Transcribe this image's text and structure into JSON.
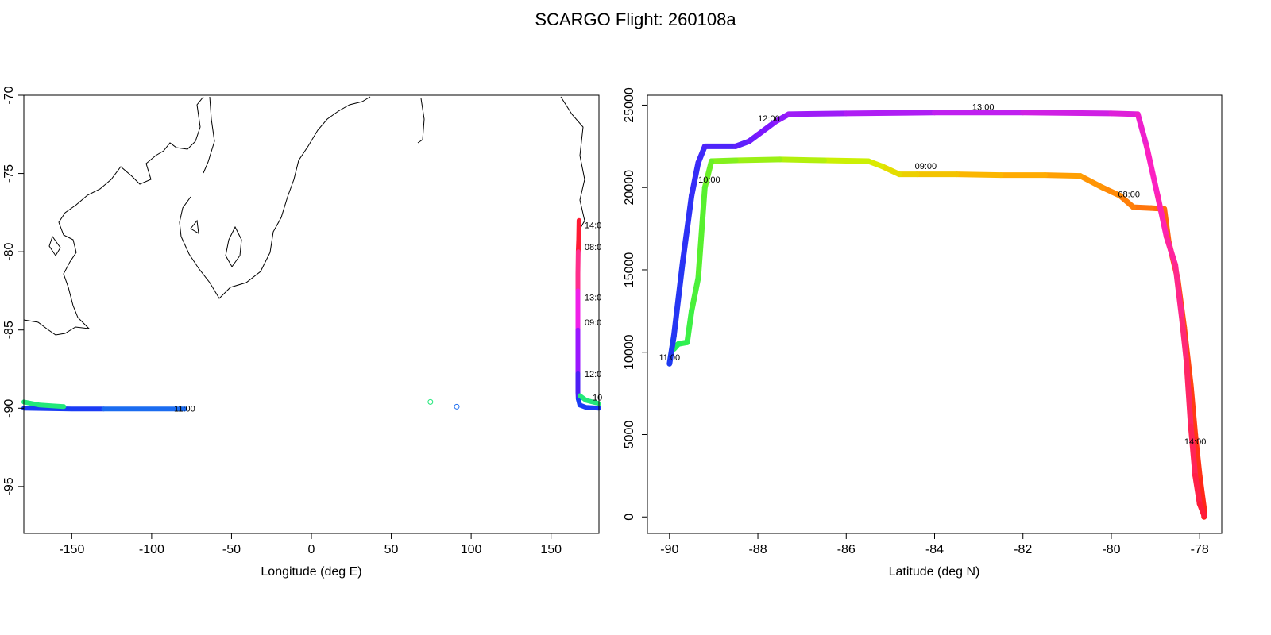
{
  "figure": {
    "title": "SCARGO Flight: 260108a"
  },
  "chart_data": [
    {
      "type": "line",
      "panel": "map",
      "xlabel": "Longitude (deg E)",
      "ylabel": "",
      "xlim": [
        -180,
        180
      ],
      "ylim": [
        -98,
        -70
      ],
      "x_ticks": [
        "-150",
        "-100",
        "-50",
        "0",
        "50",
        "100",
        "150"
      ],
      "x_tick_values": [
        -150,
        -100,
        -50,
        0,
        50,
        100,
        150
      ],
      "y_ticks": [
        "-70",
        "-75",
        "-80",
        "-85",
        "-90",
        "-95"
      ],
      "y_tick_values": [
        -70,
        -75,
        -80,
        -85,
        -90,
        -95
      ],
      "track_segments": [
        {
          "color": "#ff1a33",
          "points": [
            [
              167.5,
              -78.0
            ],
            [
              167.3,
              -79.2
            ],
            [
              167.0,
              -80.0
            ]
          ]
        },
        {
          "color": "#ff2f8c",
          "points": [
            [
              167.0,
              -80.0
            ],
            [
              166.8,
              -81.4
            ],
            [
              166.8,
              -82.5
            ]
          ]
        },
        {
          "color": "#f020e8",
          "points": [
            [
              166.8,
              -82.5
            ],
            [
              166.8,
              -83.8
            ],
            [
              166.8,
              -85.0
            ]
          ]
        },
        {
          "color": "#9a17ff",
          "points": [
            [
              166.8,
              -85.0
            ],
            [
              166.8,
              -86.5
            ],
            [
              166.8,
              -87.8
            ]
          ]
        },
        {
          "color": "#4d1ff5",
          "points": [
            [
              166.8,
              -87.8
            ],
            [
              166.8,
              -89.0
            ],
            [
              167.0,
              -89.4
            ]
          ]
        },
        {
          "color": "#1a3cf5",
          "points": [
            [
              167.0,
              -89.4
            ],
            [
              168.0,
              -89.8
            ],
            [
              172.0,
              -89.95
            ],
            [
              180.0,
              -90.0
            ]
          ]
        },
        {
          "color": "#1a3cf5",
          "points": [
            [
              -180.0,
              -90.0
            ],
            [
              -150.0,
              -90.05
            ],
            [
              -130.0,
              -90.05
            ]
          ]
        },
        {
          "color": "#1b6cf0",
          "points": [
            [
              -130.0,
              -90.05
            ],
            [
              -100.0,
              -90.05
            ],
            [
              -79.0,
              -90.05
            ]
          ]
        },
        {
          "color": "#22e87a",
          "points": [
            [
              -180.0,
              -89.6
            ],
            [
              -170.0,
              -89.8
            ],
            [
              -155.0,
              -89.9
            ]
          ]
        },
        {
          "color": "#22e87a",
          "points": [
            [
              168.0,
              -89.2
            ],
            [
              172.0,
              -89.5
            ],
            [
              180.0,
              -89.7
            ]
          ]
        }
      ],
      "markers": [
        {
          "lon": 74.5,
          "lat": -89.6,
          "color": "#22e87a"
        },
        {
          "lon": 91.0,
          "lat": -89.9,
          "color": "#1b6cf0"
        }
      ],
      "time_labels": [
        {
          "text": "14:0",
          "lon": 171.0,
          "lat": -78.3
        },
        {
          "text": "08:0",
          "lon": 171.0,
          "lat": -79.7
        },
        {
          "text": "13:0",
          "lon": 171.0,
          "lat": -82.9
        },
        {
          "text": "09:0",
          "lon": 171.0,
          "lat": -84.5
        },
        {
          "text": "12:0",
          "lon": 171.0,
          "lat": -87.8
        },
        {
          "text": "10",
          "lon": 176.0,
          "lat": -89.3
        },
        {
          "text": "11:00",
          "lon": -86.0,
          "lat": -90.0
        }
      ]
    },
    {
      "type": "line",
      "panel": "profile",
      "xlabel": "Latitude (deg N)",
      "ylabel": "",
      "xlim": [
        -90.5,
        -77.5
      ],
      "ylim": [
        -1000,
        25600
      ],
      "x_ticks": [
        "-90",
        "-88",
        "-86",
        "-84",
        "-82",
        "-80",
        "-78"
      ],
      "x_tick_values": [
        -90,
        -88,
        -86,
        -84,
        -82,
        -80,
        -78
      ],
      "y_ticks": [
        "0",
        "5000",
        "10000",
        "15000",
        "20000",
        "25000"
      ],
      "y_tick_values": [
        0,
        5000,
        10000,
        15000,
        20000,
        25000
      ],
      "outbound": {
        "colors": [
          "#ff1a1a",
          "#ff4a10",
          "#ff7a0a",
          "#ffb000",
          "#d8f000",
          "#5ef02a",
          "#1ef060"
        ],
        "points": [
          [
            -77.9,
            0
          ],
          [
            -77.9,
            500
          ],
          [
            -78.0,
            2500
          ],
          [
            -78.1,
            5000
          ],
          [
            -78.2,
            8000
          ],
          [
            -78.35,
            11500
          ],
          [
            -78.5,
            14500
          ],
          [
            -78.7,
            16700
          ],
          [
            -78.8,
            18700
          ],
          [
            -79.1,
            18750
          ],
          [
            -79.5,
            18800
          ],
          [
            -79.8,
            19500
          ],
          [
            -80.2,
            20000
          ],
          [
            -80.7,
            20700
          ],
          [
            -81.5,
            20750
          ],
          [
            -82.5,
            20750
          ],
          [
            -83.5,
            20800
          ],
          [
            -84.4,
            20800
          ],
          [
            -84.8,
            20800
          ],
          [
            -85.2,
            21300
          ],
          [
            -85.5,
            21600
          ],
          [
            -86.5,
            21650
          ],
          [
            -87.5,
            21700
          ],
          [
            -88.5,
            21650
          ],
          [
            -89.05,
            21600
          ],
          [
            -89.2,
            20000
          ],
          [
            -89.35,
            14500
          ],
          [
            -89.5,
            12500
          ],
          [
            -89.6,
            10600
          ],
          [
            -89.8,
            10500
          ],
          [
            -89.9,
            10200
          ]
        ]
      },
      "return": {
        "colors": [
          "#1a3cf0",
          "#3a2af8",
          "#7a18ff",
          "#c020f0",
          "#ff20c0",
          "#ff2a70",
          "#ff1a30"
        ],
        "points": [
          [
            -90.0,
            9300
          ],
          [
            -89.9,
            11000
          ],
          [
            -89.7,
            15500
          ],
          [
            -89.5,
            19500
          ],
          [
            -89.35,
            21500
          ],
          [
            -89.2,
            22500
          ],
          [
            -88.5,
            22500
          ],
          [
            -88.2,
            22800
          ],
          [
            -88.0,
            23200
          ],
          [
            -87.6,
            24000
          ],
          [
            -87.3,
            24450
          ],
          [
            -86.0,
            24500
          ],
          [
            -84.0,
            24550
          ],
          [
            -82.0,
            24550
          ],
          [
            -80.0,
            24500
          ],
          [
            -79.4,
            24450
          ],
          [
            -79.2,
            22500
          ],
          [
            -78.95,
            19500
          ],
          [
            -78.75,
            17000
          ],
          [
            -78.55,
            15300
          ],
          [
            -78.4,
            12000
          ],
          [
            -78.3,
            9500
          ],
          [
            -78.2,
            5500
          ],
          [
            -78.1,
            2500
          ],
          [
            -78.0,
            800
          ],
          [
            -77.9,
            100
          ]
        ]
      },
      "time_labels": [
        {
          "text": "12:00",
          "lat": -87.75,
          "alt": 24200
        },
        {
          "text": "13:00",
          "lat": -82.9,
          "alt": 24900
        },
        {
          "text": "10:00",
          "lat": -89.1,
          "alt": 20500
        },
        {
          "text": "09:00",
          "lat": -84.2,
          "alt": 21300
        },
        {
          "text": "08:00",
          "lat": -79.6,
          "alt": 19600
        },
        {
          "text": "11:00",
          "lat": -90.0,
          "alt": 9700
        },
        {
          "text": "14:00",
          "lat": -78.1,
          "alt": 4600
        }
      ]
    }
  ]
}
